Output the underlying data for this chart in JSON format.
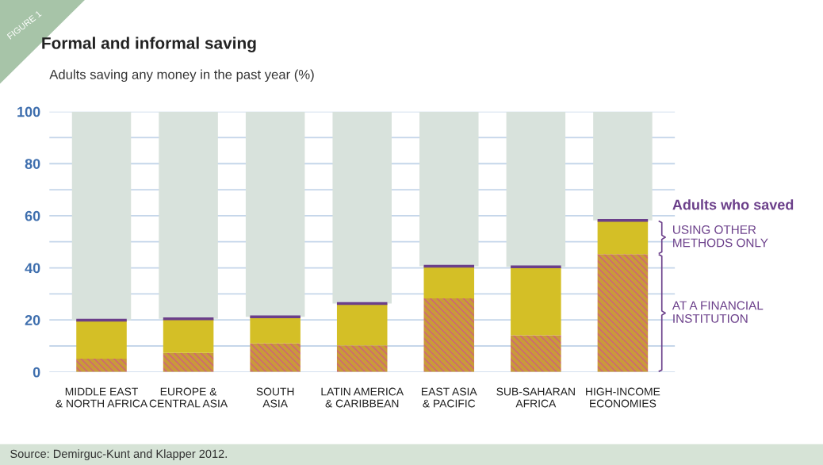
{
  "chart_data": {
    "type": "bar",
    "title": "Formal and informal saving",
    "subtitle": "Adults saving any money in the past year (%)",
    "categories": [
      "MIDDLE EAST\n& NORTH AFRICA",
      "EUROPE &\nCENTRAL ASIA",
      "SOUTH\nASIA",
      "LATIN AMERICA\n& CARIBBEAN",
      "EAST ASIA\n& PACIFIC",
      "SUB-SAHARAN\nAFRICA",
      "HIGH-INCOME\nECONOMIES"
    ],
    "series": [
      {
        "name": "AT A FINANCIAL INSTITUTION",
        "color": "#c99a3a",
        "values": [
          5.1,
          7.3,
          11,
          10.2,
          28.3,
          14.1,
          45.3
        ]
      },
      {
        "name": "USING OTHER METHODS ONLY",
        "color": "#d4bf26",
        "values": [
          14.8,
          13.1,
          10.2,
          16.1,
          12.3,
          26.3,
          12.9
        ]
      },
      {
        "color": "#d8e2dc",
        "values": [
          80.1,
          79.6,
          78.8,
          73.7,
          59.4,
          59.6,
          41.8
        ]
      }
    ],
    "stacked": true,
    "ylim": [
      0,
      100
    ],
    "yticks": [
      0,
      {
        "value": 10,
        "label": null
      },
      20,
      {
        "value": 30,
        "label": null
      },
      40,
      {
        "value": 50,
        "label": null
      },
      60,
      {
        "value": 70,
        "label": null
      },
      80,
      {
        "value": 90,
        "label": null
      },
      100
    ],
    "grid": "y",
    "legend": "right",
    "legend_title": "Adults who saved",
    "annotations": [
      "FIGURE 1",
      "Source: Demirguc-Kunt and Klapper 2012."
    ]
  }
}
